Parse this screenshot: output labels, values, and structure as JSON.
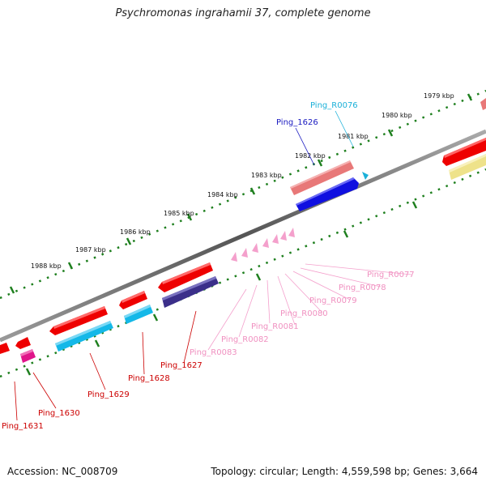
{
  "title": "Psychromonas ingrahamii 37, complete genome",
  "footer": {
    "accession": "Accession: NC_008709",
    "stats": "Topology: circular; Length: 4,559,598 bp; Genes: 3,664"
  },
  "scale_labels": [
    "1979 kbp",
    "1980 kbp",
    "1981 kbp",
    "1982 kbp",
    "1983 kbp",
    "1984 kbp",
    "1985 kbp",
    "1986 kbp",
    "1987 kbp",
    "1988 kbp"
  ],
  "features": [
    {
      "id": "Ping_R0076",
      "color": "#1ab0d8"
    },
    {
      "id": "Ping_1626",
      "color": "#1a1ac0"
    },
    {
      "id": "Ping_R0077",
      "color": "#f090c0"
    },
    {
      "id": "Ping_R0078",
      "color": "#f090c0"
    },
    {
      "id": "Ping_R0079",
      "color": "#f090c0"
    },
    {
      "id": "Ping_R0080",
      "color": "#f090c0"
    },
    {
      "id": "Ping_R0081",
      "color": "#f090c0"
    },
    {
      "id": "Ping_R0082",
      "color": "#f090c0"
    },
    {
      "id": "Ping_R0083",
      "color": "#f090c0"
    },
    {
      "id": "Ping_1627",
      "color": "#cc0000"
    },
    {
      "id": "Ping_1628",
      "color": "#cc0000"
    },
    {
      "id": "Ping_1629",
      "color": "#cc0000"
    },
    {
      "id": "Ping_1630",
      "color": "#cc0000"
    },
    {
      "id": "Ping_1631",
      "color": "#cc0000"
    }
  ]
}
